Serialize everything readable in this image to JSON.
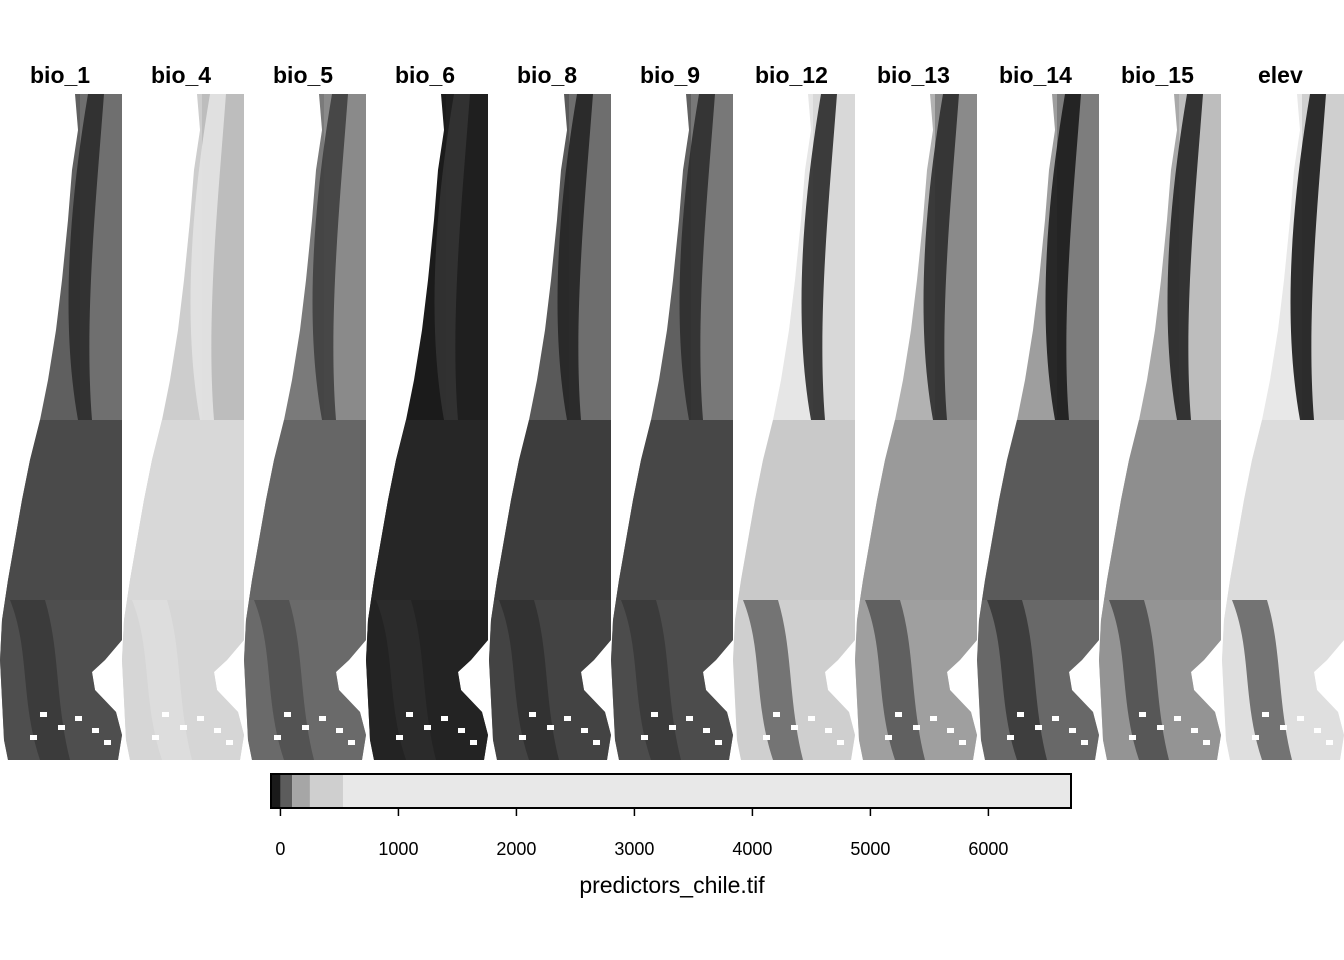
{
  "panels": [
    {
      "title": "bio_1",
      "palette": [
        "#5f5f5f",
        "#4a4a4a",
        "#2b2b2b",
        "#6f6f6f"
      ]
    },
    {
      "title": "bio_4",
      "palette": [
        "#cdcdcd",
        "#d8d8d8",
        "#e3e3e3",
        "#bdbdbd"
      ]
    },
    {
      "title": "bio_5",
      "palette": [
        "#7a7a7a",
        "#666666",
        "#3f3f3f",
        "#8a8a8a"
      ]
    },
    {
      "title": "bio_6",
      "palette": [
        "#1b1b1b",
        "#262626",
        "#333333",
        "#1f1f1f"
      ]
    },
    {
      "title": "bio_8",
      "palette": [
        "#595959",
        "#3d3d3d",
        "#242424",
        "#6e6e6e"
      ]
    },
    {
      "title": "bio_9",
      "palette": [
        "#606060",
        "#474747",
        "#2e2e2e",
        "#787878"
      ]
    },
    {
      "title": "bio_12",
      "palette": [
        "#e6e6e6",
        "#c9c9c9",
        "#2a2a2a",
        "#d8d8d8"
      ]
    },
    {
      "title": "bio_13",
      "palette": [
        "#b2b2b2",
        "#9a9a9a",
        "#2c2c2c",
        "#8a8a8a"
      ]
    },
    {
      "title": "bio_14",
      "palette": [
        "#9e9e9e",
        "#5a5a5a",
        "#1b1b1b",
        "#7d7d7d"
      ]
    },
    {
      "title": "bio_15",
      "palette": [
        "#a9a9a9",
        "#8e8e8e",
        "#242424",
        "#bdbdbd"
      ]
    },
    {
      "title": "elev",
      "palette": [
        "#e8e8e8",
        "#dcdcdc",
        "#1a1a1a",
        "#cfcfcf"
      ]
    }
  ],
  "legend": {
    "range": [
      -80,
      6700
    ],
    "breaks": [
      -80,
      0,
      100,
      250,
      530,
      6700
    ],
    "colors": [
      "#1a1a1a",
      "#5c5c5c",
      "#a6a6a6",
      "#cfcfcf",
      "#e8e8e8"
    ],
    "ticks": [
      {
        "value": 0,
        "label": "0"
      },
      {
        "value": 1000,
        "label": "1000"
      },
      {
        "value": 2000,
        "label": "2000"
      },
      {
        "value": 3000,
        "label": "3000"
      },
      {
        "value": 4000,
        "label": "4000"
      },
      {
        "value": 5000,
        "label": "5000"
      },
      {
        "value": 6000,
        "label": "6000"
      }
    ],
    "title": "predictors_chile.tif"
  }
}
